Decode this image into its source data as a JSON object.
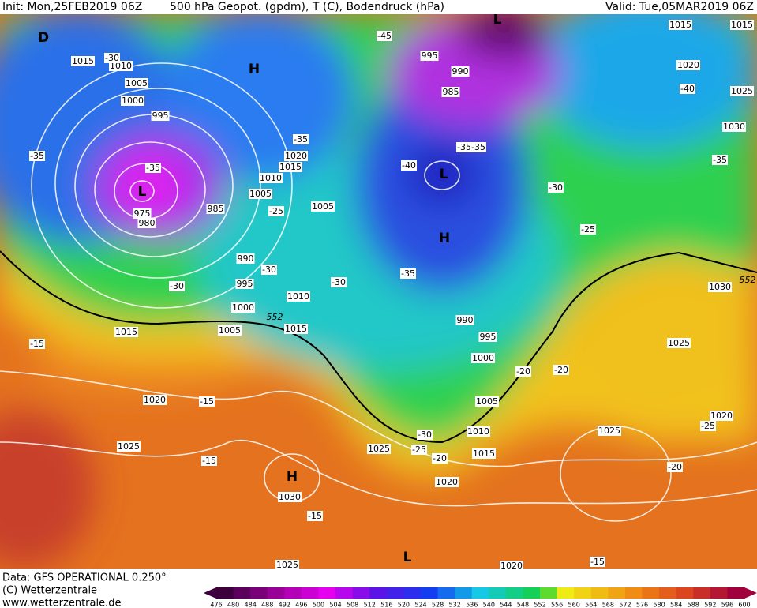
{
  "header": {
    "init": "Init: Mon,25FEB2019 06Z",
    "title": "500 hPa Geopot. (gpdm), T (C), Bodendruck (hPa)",
    "valid": "Valid: Tue,05MAR2019 06Z"
  },
  "footer": {
    "data": "Data: GFS OPERATIONAL 0.250°",
    "copyright": "(C) Wetterzentrale",
    "url": "www.wetterzentrale.de"
  },
  "colorbar": {
    "ticks": [
      476,
      480,
      484,
      488,
      492,
      496,
      500,
      504,
      508,
      512,
      516,
      520,
      524,
      528,
      532,
      536,
      540,
      544,
      548,
      552,
      556,
      560,
      564,
      568,
      572,
      576,
      580,
      584,
      588,
      592,
      596,
      600
    ]
  },
  "map": {
    "isobar_labels": [
      "1015",
      "1010",
      "1005",
      "1000",
      "995",
      "975",
      "980",
      "985",
      "990",
      "995",
      "1000",
      "1005",
      "1015",
      "1010",
      "1015",
      "1020",
      "1025",
      "1030",
      "1025",
      "1020",
      "1015",
      "1010",
      "1005",
      "1005",
      "995",
      "990",
      "985",
      "990",
      "995",
      "1000",
      "1005",
      "1010",
      "1015",
      "1025",
      "1020",
      "1020",
      "1015",
      "1015",
      "1020",
      "1025",
      "1030",
      "1030",
      "1025",
      "1025",
      "1020"
    ],
    "temperature_labels": [
      "-30",
      "-35",
      "-35",
      "-25",
      "-35",
      "-30",
      "-30",
      "-15",
      "-15",
      "-15",
      "-15",
      "-45",
      "-40",
      "-35-35",
      "-30",
      "-35",
      "-30",
      "-25",
      "-40",
      "-35",
      "-20",
      "-20",
      "-30",
      "-25",
      "-20",
      "-25",
      "-20",
      "-15"
    ],
    "centers": [
      "H",
      "H",
      "H",
      "L",
      "L",
      "L",
      "D",
      "L"
    ],
    "contour_labels": [
      "552",
      "552"
    ]
  }
}
